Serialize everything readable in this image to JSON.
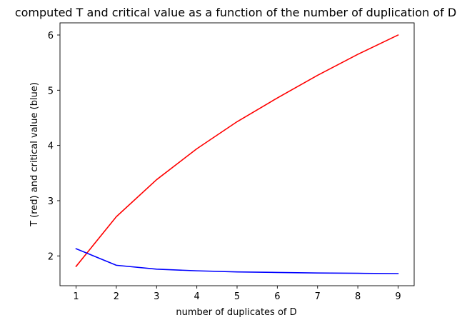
{
  "chart_data": {
    "type": "line",
    "title": "computed T and critical value as a function of the number of duplication of D",
    "xlabel": "number of duplicates of D",
    "ylabel": "T (red) and critical value (blue)",
    "x": [
      1,
      2,
      3,
      4,
      5,
      6,
      7,
      8,
      9
    ],
    "series": [
      {
        "color": "#ff0000",
        "values": [
          1.81,
          2.71,
          3.38,
          3.94,
          4.43,
          4.86,
          5.27,
          5.65,
          6.0
        ]
      },
      {
        "color": "#0000ff",
        "values": [
          2.13,
          1.83,
          1.76,
          1.73,
          1.71,
          1.7,
          1.69,
          1.685,
          1.68
        ]
      }
    ],
    "xlim": [
      0.6,
      9.4
    ],
    "ylim": [
      1.46,
      6.22
    ],
    "xticks": [
      1,
      2,
      3,
      4,
      5,
      6,
      7,
      8,
      9
    ],
    "yticks": [
      2,
      3,
      4,
      5,
      6
    ],
    "grid": false,
    "legend": "none"
  }
}
